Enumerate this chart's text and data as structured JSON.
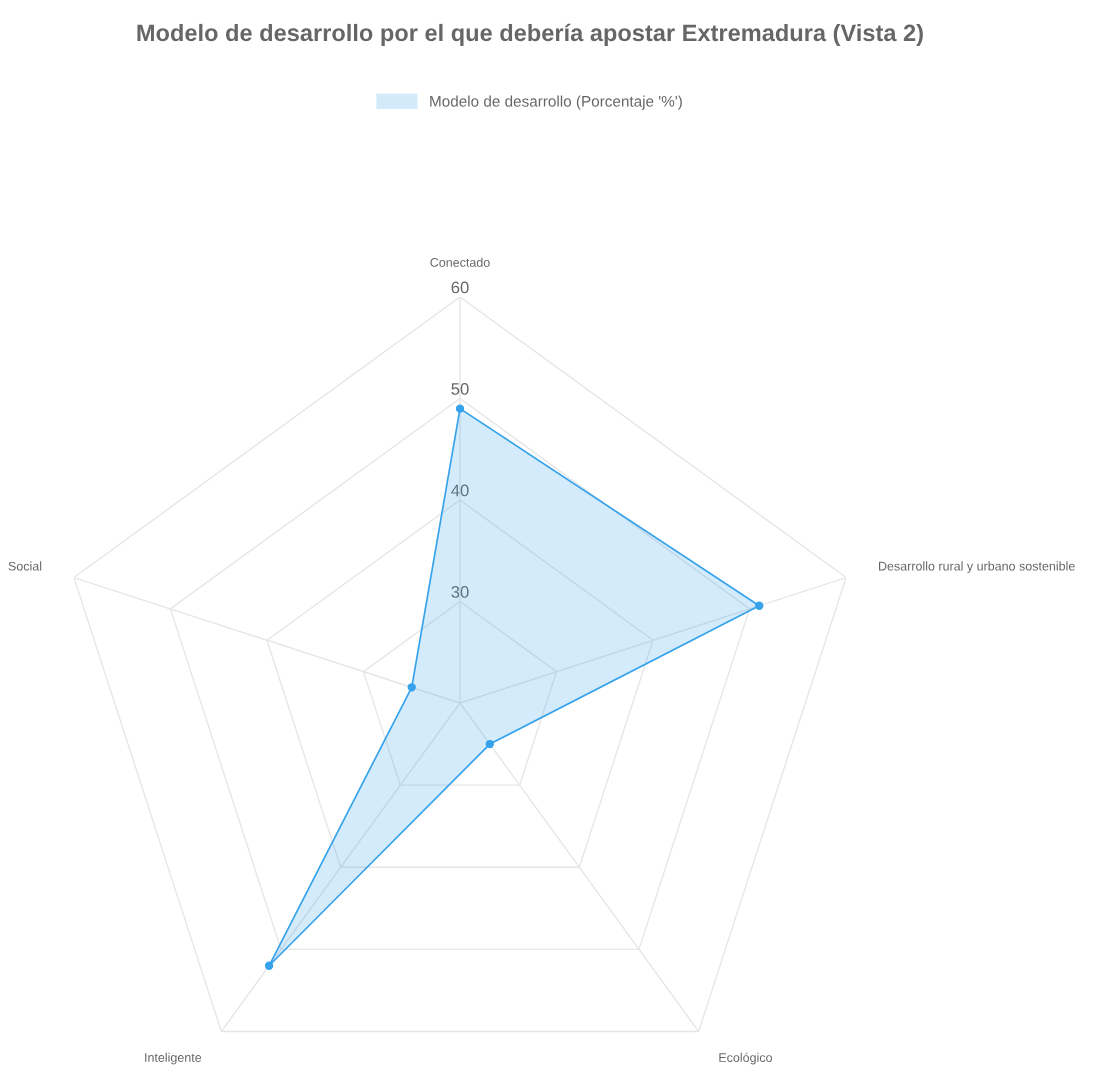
{
  "chart_data": {
    "type": "radar",
    "title": "Modelo de desarrollo por el que debería apostar Extremadura (Vista 2)",
    "categories": [
      "Conectado",
      "Desarrollo rural y urbano sostenible",
      "Ecológico",
      "Inteligente",
      "Social"
    ],
    "series": [
      {
        "name": "Modelo de desarrollo (Porcentaje '%')",
        "color": "#36a2eb",
        "values": [
          49,
          51,
          25,
          52,
          25
        ]
      }
    ],
    "ylim": [
      20,
      60
    ],
    "yticks": [
      30,
      40,
      50,
      60
    ],
    "grid": true,
    "legend": "top",
    "marker": "circle"
  }
}
